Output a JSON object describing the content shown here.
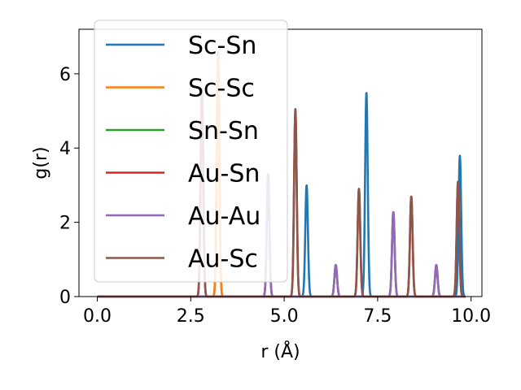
{
  "chart_data": {
    "type": "line",
    "title": "",
    "xlabel": "r (Å)",
    "ylabel": "g(r)",
    "xlim": [
      -0.49,
      10.29
    ],
    "ylim": [
      0,
      7.2
    ],
    "xticks": [
      0.0,
      2.5,
      5.0,
      7.5,
      10.0
    ],
    "xtick_labels": [
      "0.0",
      "2.5",
      "5.0",
      "7.5",
      "10.0"
    ],
    "yticks": [
      0,
      2,
      4,
      6
    ],
    "ytick_labels": [
      "0",
      "2",
      "4",
      "6"
    ],
    "grid": false,
    "legend_position": "upper-left",
    "series": [
      {
        "name": "Sc-Sn",
        "color": "#1f77b4",
        "peaks": [
          [
            3.23,
            6.6
          ],
          [
            5.6,
            3.0
          ],
          [
            7.2,
            5.5
          ],
          [
            9.7,
            3.8
          ]
        ]
      },
      {
        "name": "Sc-Sc",
        "color": "#ff7f0e",
        "peaks": [
          [
            3.23,
            6.5
          ],
          [
            4.57,
            3.3
          ],
          [
            6.38,
            0.85
          ],
          [
            7.92,
            2.28
          ],
          [
            9.07,
            0.85
          ]
        ]
      },
      {
        "name": "Sn-Sn",
        "color": "#2ca02c",
        "peaks": [
          [
            4.57,
            3.3
          ],
          [
            6.38,
            0.85
          ],
          [
            7.92,
            2.28
          ],
          [
            9.07,
            0.85
          ]
        ]
      },
      {
        "name": "Au-Sn",
        "color": "#d62728",
        "peaks": [
          [
            2.8,
            5.6
          ],
          [
            5.3,
            5.0
          ],
          [
            7.0,
            2.9
          ],
          [
            8.4,
            2.7
          ],
          [
            9.65,
            3.1
          ]
        ]
      },
      {
        "name": "Au-Au",
        "color": "#9467bd",
        "peaks": [
          [
            4.57,
            3.3
          ],
          [
            6.38,
            0.85
          ],
          [
            7.92,
            2.28
          ],
          [
            9.07,
            0.85
          ]
        ]
      },
      {
        "name": "Au-Sc",
        "color": "#8c564b",
        "peaks": [
          [
            2.8,
            5.6
          ],
          [
            5.3,
            5.05
          ],
          [
            7.0,
            2.9
          ],
          [
            8.4,
            2.7
          ],
          [
            9.65,
            3.1
          ]
        ]
      }
    ]
  }
}
